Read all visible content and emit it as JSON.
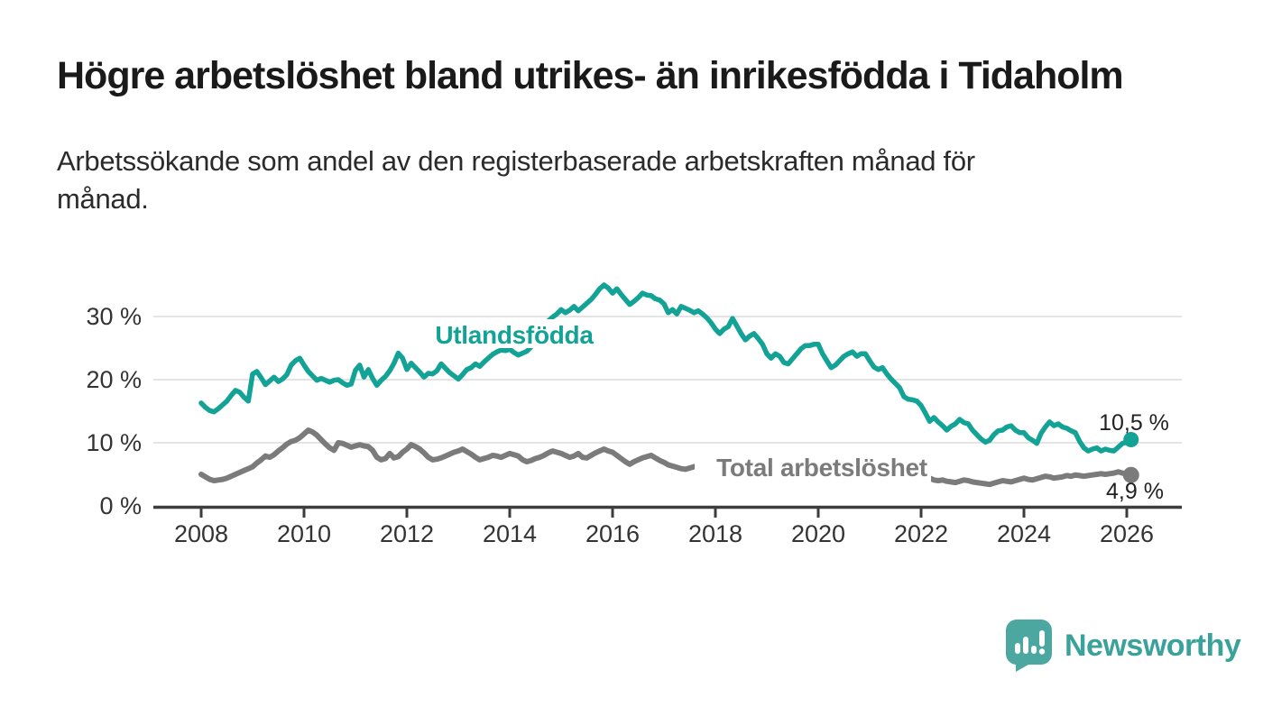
{
  "header": {
    "title": "Högre arbetslöshet bland utrikes- än inrikesfödda i Tidaholm",
    "subtitle_line1": "Arbetssökande som andel av den registerbaserade arbetskraften månad för",
    "subtitle_line2": "månad."
  },
  "colors": {
    "teal": "#12a296",
    "gray": "#7b7b7b",
    "grid": "#dcdcdc",
    "axis": "#3d3d3d",
    "tick_text": "#333333",
    "value_text": "#222222",
    "brand": "#3aa29b",
    "logo_bubble": "#4ba7a0"
  },
  "chart_data": {
    "type": "line",
    "interval": "monthly",
    "x_start": "2008-01",
    "x_end": "2026-02",
    "unit": "%",
    "ylim": [
      0,
      36
    ],
    "grid": "horizontal",
    "y_ticks": [
      {
        "value": 0,
        "label": "0 %"
      },
      {
        "value": 10,
        "label": "10 %"
      },
      {
        "value": 20,
        "label": "20 %"
      },
      {
        "value": 30,
        "label": "30 %"
      }
    ],
    "x_ticks": [
      {
        "value": 2008,
        "label": "2008"
      },
      {
        "value": 2010,
        "label": "2010"
      },
      {
        "value": 2012,
        "label": "2012"
      },
      {
        "value": 2014,
        "label": "2014"
      },
      {
        "value": 2016,
        "label": "2016"
      },
      {
        "value": 2018,
        "label": "2018"
      },
      {
        "value": 2020,
        "label": "2020"
      },
      {
        "value": 2022,
        "label": "2022"
      },
      {
        "value": 2024,
        "label": "2024"
      },
      {
        "value": 2026,
        "label": "2026"
      }
    ],
    "series": [
      {
        "id": "utlandsfodda",
        "name": "Utlandsfödda",
        "color": "#12a296",
        "end_label": "10,5 %",
        "values": [
          16.3,
          15.6,
          15.1,
          14.9,
          15.4,
          16.0,
          16.6,
          17.5,
          18.3,
          18.0,
          17.2,
          16.6,
          20.9,
          21.3,
          20.3,
          19.2,
          19.8,
          20.4,
          19.7,
          20.1,
          20.8,
          22.3,
          23.0,
          23.4,
          22.3,
          21.3,
          20.6,
          19.9,
          20.2,
          19.9,
          19.6,
          19.9,
          20.0,
          19.5,
          19.1,
          19.3,
          21.5,
          22.3,
          20.4,
          21.6,
          20.2,
          19.1,
          19.9,
          20.5,
          21.4,
          22.6,
          24.2,
          23.4,
          21.6,
          22.6,
          21.9,
          21.2,
          20.4,
          21.0,
          20.9,
          21.4,
          22.5,
          21.8,
          21.1,
          20.6,
          20.1,
          20.8,
          21.6,
          21.9,
          22.5,
          22.1,
          22.8,
          23.4,
          24.0,
          24.4,
          24.7,
          24.6,
          24.8,
          24.3,
          23.9,
          24.2,
          24.5,
          25.2,
          26.0,
          27.0,
          28.2,
          29.3,
          29.9,
          30.4,
          31.1,
          30.6,
          31.0,
          31.6,
          30.9,
          31.5,
          32.1,
          32.7,
          33.5,
          34.4,
          35.0,
          34.5,
          33.7,
          34.4,
          33.5,
          32.7,
          31.9,
          32.4,
          33.0,
          33.7,
          33.4,
          33.3,
          32.8,
          32.6,
          32.0,
          30.6,
          31.1,
          30.4,
          31.6,
          31.3,
          31.0,
          30.6,
          30.9,
          30.4,
          29.8,
          29.0,
          28.0,
          27.3,
          28.0,
          28.4,
          29.7,
          28.5,
          27.3,
          26.3,
          26.9,
          27.3,
          26.5,
          25.6,
          24.1,
          23.4,
          24.1,
          23.7,
          22.7,
          22.5,
          23.3,
          24.1,
          24.9,
          25.4,
          25.4,
          25.6,
          25.6,
          24.1,
          23.0,
          21.9,
          22.3,
          23.0,
          23.7,
          24.1,
          24.4,
          23.7,
          24.1,
          24.1,
          23.0,
          22.0,
          21.6,
          21.9,
          20.9,
          20.1,
          19.4,
          18.7,
          17.3,
          16.9,
          16.8,
          16.6,
          15.9,
          14.7,
          13.4,
          14.0,
          13.3,
          12.7,
          12.0,
          12.6,
          13.0,
          13.7,
          13.2,
          13.0,
          12.0,
          11.3,
          10.6,
          10.1,
          10.4,
          11.3,
          11.9,
          12.0,
          12.5,
          12.7,
          12.0,
          11.6,
          11.6,
          10.8,
          10.4,
          9.9,
          11.5,
          12.5,
          13.3,
          12.7,
          13.0,
          12.5,
          12.3,
          11.9,
          11.6,
          10.2,
          9.2,
          8.7,
          9.0,
          9.2,
          8.7,
          9.0,
          8.8,
          8.7,
          9.3,
          9.9,
          10.1,
          10.5
        ]
      },
      {
        "id": "total",
        "name": "Total arbetslöshet",
        "color": "#7b7b7b",
        "end_label": "4,9 %",
        "values": [
          5.0,
          4.6,
          4.2,
          4.0,
          4.1,
          4.2,
          4.4,
          4.7,
          5.0,
          5.3,
          5.6,
          5.9,
          6.2,
          6.8,
          7.3,
          7.9,
          7.7,
          8.1,
          8.7,
          9.2,
          9.8,
          10.2,
          10.4,
          10.8,
          11.4,
          12.0,
          11.7,
          11.2,
          10.5,
          9.8,
          9.2,
          8.8,
          10.0,
          9.9,
          9.6,
          9.3,
          9.5,
          9.7,
          9.5,
          9.4,
          8.8,
          7.7,
          7.3,
          7.5,
          8.3,
          7.6,
          7.8,
          8.5,
          9.0,
          9.7,
          9.4,
          9.0,
          8.4,
          7.7,
          7.3,
          7.4,
          7.6,
          7.9,
          8.2,
          8.5,
          8.7,
          9.0,
          8.6,
          8.2,
          7.7,
          7.3,
          7.5,
          7.7,
          8.0,
          7.9,
          7.7,
          8.0,
          8.3,
          8.1,
          7.9,
          7.3,
          7.0,
          7.2,
          7.5,
          7.7,
          8.0,
          8.4,
          8.7,
          8.5,
          8.3,
          8.0,
          7.7,
          7.9,
          8.3,
          7.7,
          7.6,
          8.0,
          8.4,
          8.7,
          9.0,
          8.7,
          8.5,
          8.0,
          7.5,
          7.0,
          6.6,
          7.0,
          7.3,
          7.6,
          7.8,
          8.0,
          7.6,
          7.2,
          6.9,
          6.5,
          6.3,
          6.1,
          5.9,
          5.8,
          6.0,
          6.2,
          6.4,
          6.3,
          6.1,
          6.0,
          5.8,
          5.6,
          5.5,
          5.4,
          5.3,
          5.2,
          5.3,
          5.4,
          5.5,
          5.4,
          5.3,
          5.2,
          5.1,
          5.0,
          4.9,
          4.8,
          4.8,
          4.9,
          5.0,
          5.1,
          5.2,
          5.3,
          5.4,
          5.5,
          5.7,
          5.9,
          6.3,
          6.8,
          7.0,
          7.1,
          7.0,
          6.9,
          6.7,
          6.5,
          6.3,
          6.2,
          6.1,
          6.0,
          5.9,
          5.7,
          5.5,
          5.3,
          5.1,
          4.9,
          4.7,
          4.6,
          4.5,
          4.4,
          4.3,
          4.2,
          4.4,
          4.1,
          4.0,
          4.1,
          3.9,
          3.8,
          3.7,
          3.9,
          4.1,
          4.0,
          3.8,
          3.7,
          3.6,
          3.5,
          3.4,
          3.6,
          3.8,
          4.0,
          3.9,
          3.8,
          4.0,
          4.2,
          4.4,
          4.2,
          4.1,
          4.3,
          4.5,
          4.7,
          4.6,
          4.4,
          4.5,
          4.6,
          4.8,
          4.7,
          4.9,
          4.8,
          4.7,
          4.8,
          4.9,
          5.0,
          5.1,
          5.0,
          5.1,
          5.2,
          5.4,
          5.2,
          5.0,
          4.9
        ]
      }
    ]
  },
  "footer": {
    "brand": "Newsworthy",
    "logo_icon": "bar-chart-speech-bubble-icon"
  }
}
